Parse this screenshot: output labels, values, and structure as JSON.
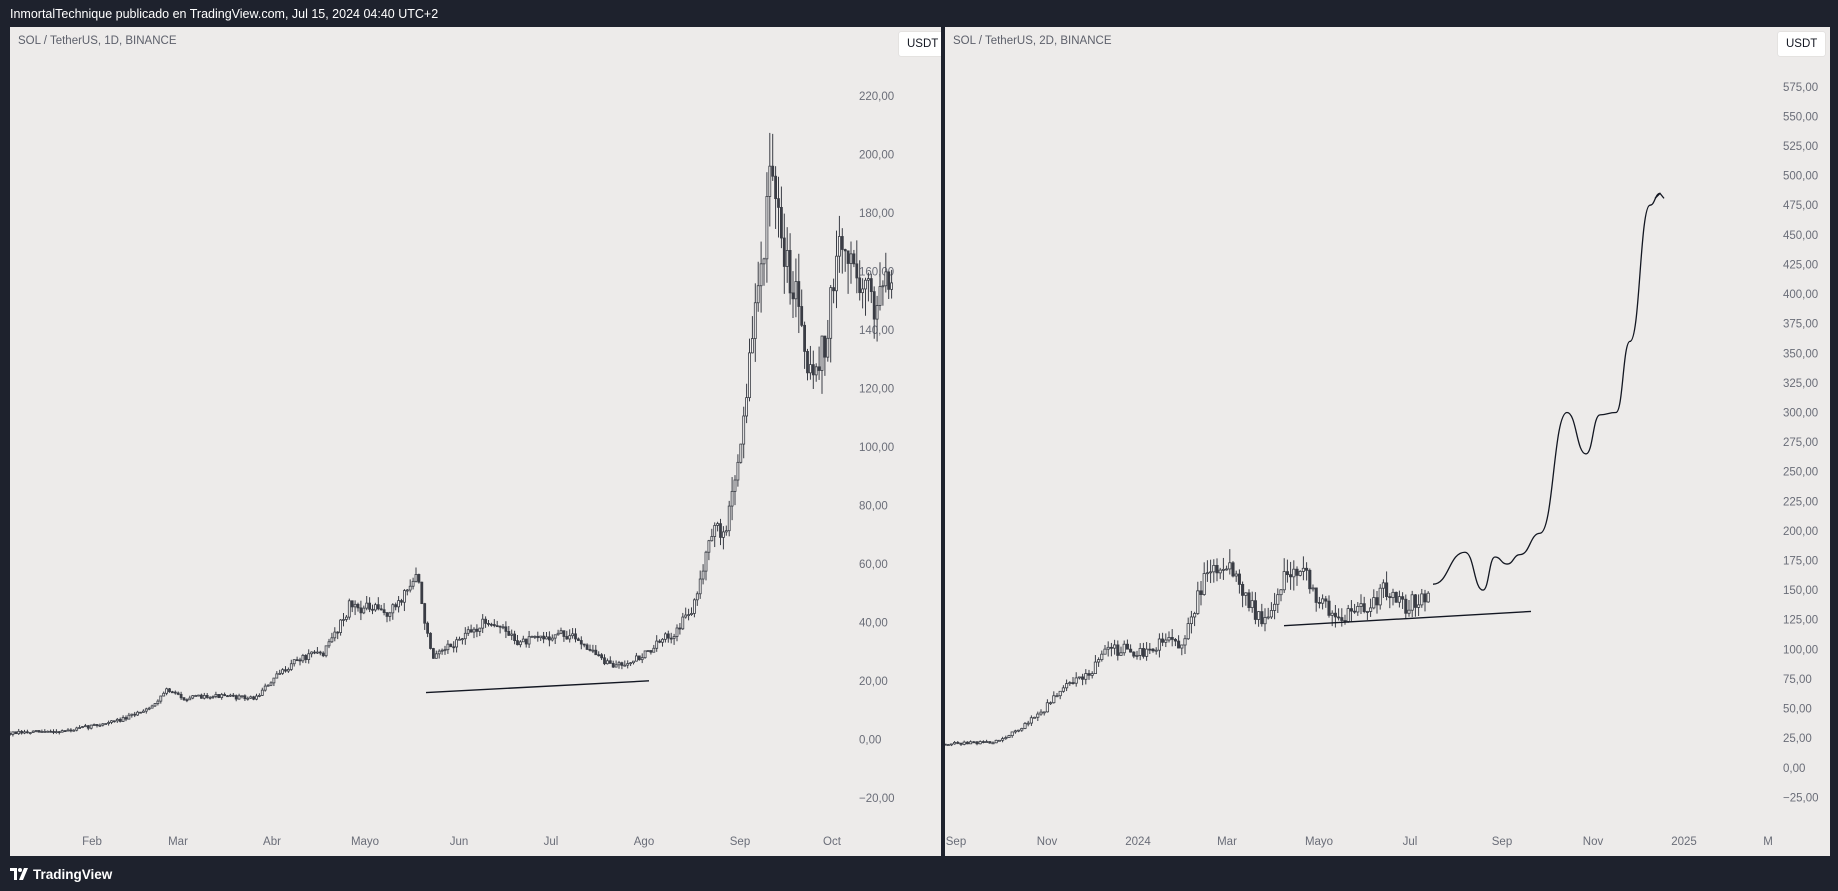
{
  "header": {
    "text": "InmortalTechnique publicado en TradingView.com, Jul 15, 2024 04:40 UTC+2"
  },
  "footer": {
    "brand": "TradingView",
    "logo_icon": "tradingview-logo-icon"
  },
  "colors": {
    "background": "#1e222d",
    "panel": "#edebea",
    "candle": "#3a3d45",
    "axis_text": "#6a6d78"
  },
  "chart_data": [
    {
      "type": "candlestick",
      "symbol_label": "SOL / TetherUS, 1D, BINANCE",
      "currency": "USDT",
      "y_ticks": [
        "220,00",
        "200,00",
        "180,00",
        "160,00",
        "140,00",
        "120,00",
        "100,00",
        "80,00",
        "60,00",
        "40,00",
        "20,00",
        "0,00",
        "−20,00"
      ],
      "y_tick_values": [
        220,
        200,
        180,
        160,
        140,
        120,
        100,
        80,
        60,
        40,
        20,
        0,
        -20
      ],
      "x_ticks": [
        "Feb",
        "Mar",
        "Abr",
        "Mayo",
        "Jun",
        "Jul",
        "Ago",
        "Sep",
        "Oct"
      ],
      "ylim": [
        -30,
        230
      ],
      "price_path": [
        [
          "Ene 20",
          2
        ],
        [
          "Feb 1",
          3
        ],
        [
          "Feb 15",
          7
        ],
        [
          "Mar 1",
          12
        ],
        [
          "Mar 5",
          17
        ],
        [
          "Mar 15",
          14
        ],
        [
          "Abr 1",
          14
        ],
        [
          "Abr 10",
          20
        ],
        [
          "Abr 25",
          29
        ],
        [
          "May 5",
          46
        ],
        [
          "May 20",
          43
        ],
        [
          "May 25",
          56
        ],
        [
          "Jun 1",
          27
        ],
        [
          "Jun 15",
          41
        ],
        [
          "Jul 1",
          30
        ],
        [
          "Jul 20",
          36
        ],
        [
          "Ago 5",
          25
        ],
        [
          "Ago 20",
          38
        ],
        [
          "Sep 1",
          70
        ],
        [
          "Sep 10",
          100
        ],
        [
          "Sep 20",
          190
        ],
        [
          "Oct 1",
          150
        ],
        [
          "Oct 8",
          125
        ],
        [
          "Oct 20",
          170
        ],
        [
          "Oct 28",
          160
        ]
      ],
      "annotations": [
        {
          "type": "trendline",
          "from": [
            "May 28",
            16
          ],
          "to": [
            "Ago 18",
            20
          ]
        }
      ]
    },
    {
      "type": "candlestick",
      "symbol_label": "SOL / TetherUS, 2D, BINANCE",
      "currency": "USDT",
      "y_ticks": [
        "575,00",
        "550,00",
        "525,00",
        "500,00",
        "475,00",
        "450,00",
        "425,00",
        "400,00",
        "375,00",
        "350,00",
        "325,00",
        "300,00",
        "275,00",
        "250,00",
        "225,00",
        "200,00",
        "175,00",
        "150,00",
        "125,00",
        "100,00",
        "75,00",
        "50,00",
        "25,00",
        "0,00",
        "−25,00"
      ],
      "y_tick_values": [
        575,
        550,
        525,
        500,
        475,
        450,
        425,
        400,
        375,
        350,
        325,
        300,
        275,
        250,
        225,
        200,
        175,
        150,
        125,
        100,
        75,
        50,
        25,
        0,
        -25
      ],
      "x_ticks": [
        "Sep",
        "Nov",
        "2024",
        "Mar",
        "Mayo",
        "Jul",
        "Sep",
        "Nov",
        "2025",
        "M"
      ],
      "ylim": [
        -50,
        590
      ],
      "price_path": [
        [
          "Sep 2023",
          20
        ],
        [
          "Nov 2023",
          40
        ],
        [
          "Dic 2023",
          85
        ],
        [
          "Ene 2024",
          100
        ],
        [
          "Feb 2024",
          105
        ],
        [
          "Mar 2024",
          180
        ],
        [
          "Abr 2024",
          130
        ],
        [
          "May 2024",
          170
        ],
        [
          "Jun 2024",
          140
        ],
        [
          "Jul 2024",
          150
        ]
      ],
      "annotations": [
        {
          "type": "trendline",
          "from": [
            "Abr 2024",
            120
          ],
          "to": [
            "Sep 2024",
            132
          ]
        },
        {
          "type": "projection_path",
          "points": [
            [
              "Jul 2024",
              155
            ],
            [
              "Ago 2024",
              190
            ],
            [
              "Sep 2024",
              160
            ],
            [
              "Oct 2024",
              200
            ],
            [
              "Nov 2024",
              300
            ],
            [
              "Dic 2024",
              305
            ],
            [
              "Ene 2025",
              485
            ]
          ]
        }
      ]
    }
  ]
}
